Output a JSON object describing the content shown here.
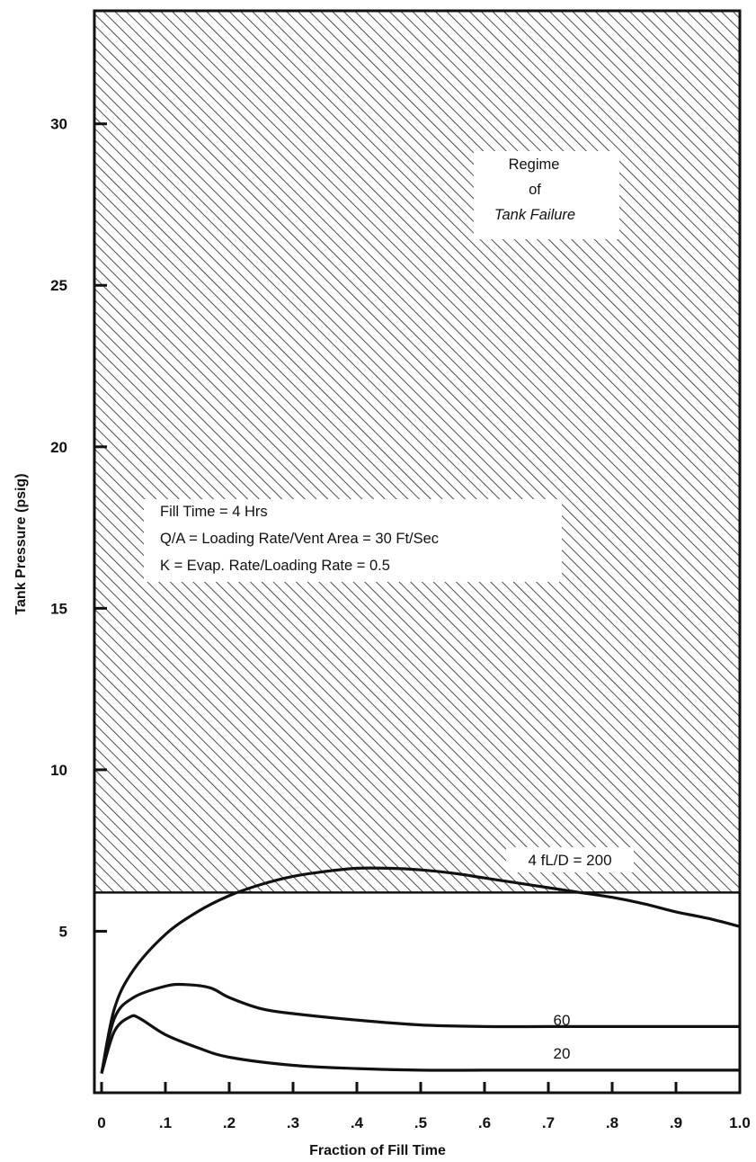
{
  "chart_data": {
    "type": "line",
    "xlabel": "Fraction of Fill Time",
    "ylabel": "Tank Pressure (psig)",
    "xlim": [
      0,
      1.0
    ],
    "ylim": [
      0,
      33.5
    ],
    "xticks": [
      0,
      0.1,
      0.2,
      0.3,
      0.4,
      0.5,
      0.6,
      0.7,
      0.8,
      0.9,
      1.0
    ],
    "xtick_labels": [
      "0",
      ".1",
      ".2",
      ".3",
      ".4",
      ".5",
      ".6",
      ".7",
      ".8",
      ".9",
      "1.0"
    ],
    "yticks": [
      5,
      10,
      15,
      20,
      25,
      30
    ],
    "ytick_labels": [
      "5",
      "10",
      "15",
      "20",
      "25",
      "30"
    ],
    "failure_threshold": 6.2,
    "failure_region_label": [
      "Regime",
      "of",
      "Tank Failure"
    ],
    "conditions": [
      "Fill Time = 4 Hrs",
      "Q/A = Loading Rate/Vent Area = 30 Ft/Sec",
      "K = Evap. Rate/Loading Rate = 0.5"
    ],
    "series": [
      {
        "name": "4 fL/D = 200",
        "x": [
          0,
          0.02,
          0.05,
          0.1,
          0.15,
          0.2,
          0.25,
          0.3,
          0.35,
          0.4,
          0.45,
          0.5,
          0.55,
          0.6,
          0.65,
          0.7,
          0.75,
          0.8,
          0.85,
          0.9,
          0.95,
          1.0
        ],
        "y": [
          0.6,
          2.6,
          3.8,
          4.9,
          5.6,
          6.1,
          6.45,
          6.7,
          6.85,
          6.95,
          6.95,
          6.9,
          6.8,
          6.65,
          6.5,
          6.35,
          6.2,
          6.05,
          5.85,
          5.6,
          5.4,
          5.15
        ]
      },
      {
        "name": "60",
        "x": [
          0,
          0.02,
          0.05,
          0.1,
          0.13,
          0.17,
          0.2,
          0.25,
          0.3,
          0.4,
          0.5,
          0.6,
          0.7,
          0.8,
          0.9,
          1.0
        ],
        "y": [
          0.6,
          2.3,
          2.95,
          3.3,
          3.35,
          3.25,
          2.95,
          2.6,
          2.45,
          2.25,
          2.1,
          2.05,
          2.05,
          2.05,
          2.05,
          2.05
        ]
      },
      {
        "name": "20",
        "x": [
          0,
          0.02,
          0.045,
          0.06,
          0.1,
          0.15,
          0.2,
          0.3,
          0.4,
          0.5,
          0.6,
          0.7,
          0.8,
          0.9,
          1.0
        ],
        "y": [
          0.6,
          1.9,
          2.35,
          2.3,
          1.8,
          1.4,
          1.1,
          0.85,
          0.75,
          0.7,
          0.7,
          0.7,
          0.7,
          0.7,
          0.7
        ]
      }
    ],
    "curve_labels": [
      "4 fL/D = 200",
      "60",
      "20"
    ]
  }
}
